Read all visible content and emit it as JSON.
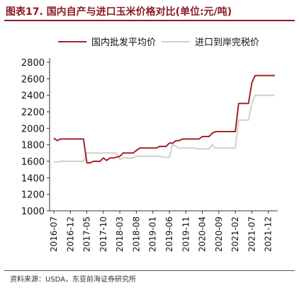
{
  "header": {
    "title": "图表17. 国内自产与进口玉米价格对比(单位:元/吨)"
  },
  "footer": {
    "source": "资料来源：USDA，东亚前海证券研究所"
  },
  "chart_data": {
    "type": "line",
    "title": "图表17. 国内自产与进口玉米价格对比(单位:元/吨)",
    "xlabel": "",
    "ylabel": "",
    "ylim": [
      1000,
      2800
    ],
    "yticks": [
      1000,
      1200,
      1400,
      1600,
      1800,
      2000,
      2200,
      2400,
      2600,
      2800
    ],
    "xticks": [
      "2016-07",
      "2016-12",
      "2017-05",
      "2017-10",
      "2018-03",
      "2018-08",
      "2019-01",
      "2019-06",
      "2019-11",
      "2020-04",
      "2020-09",
      "2021-02",
      "2021-07",
      "2021-12"
    ],
    "x_start": "2016-07",
    "x_end": "2022-02",
    "grid": false,
    "legend": "top",
    "series": [
      {
        "name": "国内批发平均价",
        "color": "#a8222c",
        "points": [
          [
            "2016-07",
            1880
          ],
          [
            "2016-08",
            1850
          ],
          [
            "2016-09",
            1870
          ],
          [
            "2016-10",
            1870
          ],
          [
            "2016-11",
            1870
          ],
          [
            "2016-12",
            1870
          ],
          [
            "2017-01",
            1870
          ],
          [
            "2017-02",
            1870
          ],
          [
            "2017-03",
            1870
          ],
          [
            "2017-04",
            1870
          ],
          [
            "2017-05",
            1580
          ],
          [
            "2017-06",
            1580
          ],
          [
            "2017-07",
            1600
          ],
          [
            "2017-08",
            1600
          ],
          [
            "2017-09",
            1600
          ],
          [
            "2017-10",
            1640
          ],
          [
            "2017-11",
            1610
          ],
          [
            "2017-12",
            1640
          ],
          [
            "2018-01",
            1640
          ],
          [
            "2018-02",
            1650
          ],
          [
            "2018-03",
            1660
          ],
          [
            "2018-04",
            1700
          ],
          [
            "2018-05",
            1700
          ],
          [
            "2018-06",
            1700
          ],
          [
            "2018-07",
            1700
          ],
          [
            "2018-08",
            1730
          ],
          [
            "2018-09",
            1760
          ],
          [
            "2018-10",
            1760
          ],
          [
            "2018-11",
            1760
          ],
          [
            "2018-12",
            1760
          ],
          [
            "2019-01",
            1760
          ],
          [
            "2019-02",
            1760
          ],
          [
            "2019-03",
            1780
          ],
          [
            "2019-04",
            1780
          ],
          [
            "2019-05",
            1780
          ],
          [
            "2019-06",
            1820
          ],
          [
            "2019-07",
            1820
          ],
          [
            "2019-08",
            1850
          ],
          [
            "2019-09",
            1850
          ],
          [
            "2019-10",
            1870
          ],
          [
            "2019-11",
            1870
          ],
          [
            "2019-12",
            1870
          ],
          [
            "2020-01",
            1870
          ],
          [
            "2020-02",
            1870
          ],
          [
            "2020-03",
            1870
          ],
          [
            "2020-04",
            1900
          ],
          [
            "2020-05",
            1900
          ],
          [
            "2020-06",
            1900
          ],
          [
            "2020-07",
            1940
          ],
          [
            "2020-08",
            1960
          ],
          [
            "2020-09",
            1960
          ],
          [
            "2020-10",
            1960
          ],
          [
            "2020-11",
            1960
          ],
          [
            "2020-12",
            1960
          ],
          [
            "2021-01",
            1960
          ],
          [
            "2021-02",
            1960
          ],
          [
            "2021-03",
            2300
          ],
          [
            "2021-04",
            2300
          ],
          [
            "2021-05",
            2300
          ],
          [
            "2021-06",
            2300
          ],
          [
            "2021-07",
            2550
          ],
          [
            "2021-08",
            2640
          ],
          [
            "2021-09",
            2640
          ],
          [
            "2021-10",
            2640
          ],
          [
            "2021-11",
            2640
          ],
          [
            "2021-12",
            2640
          ],
          [
            "2022-01",
            2640
          ],
          [
            "2022-02",
            2640
          ]
        ]
      },
      {
        "name": "进口到岸完税价",
        "color": "#cfcfcf",
        "points": [
          [
            "2016-07",
            1590
          ],
          [
            "2016-08",
            1590
          ],
          [
            "2016-09",
            1600
          ],
          [
            "2016-10",
            1600
          ],
          [
            "2016-11",
            1600
          ],
          [
            "2016-12",
            1600
          ],
          [
            "2017-01",
            1600
          ],
          [
            "2017-02",
            1600
          ],
          [
            "2017-03",
            1600
          ],
          [
            "2017-04",
            1600
          ],
          [
            "2017-05",
            1700
          ],
          [
            "2017-06",
            1700
          ],
          [
            "2017-07",
            1700
          ],
          [
            "2017-08",
            1700
          ],
          [
            "2017-09",
            1700
          ],
          [
            "2017-10",
            1700
          ],
          [
            "2017-11",
            1700
          ],
          [
            "2017-12",
            1700
          ],
          [
            "2018-01",
            1700
          ],
          [
            "2018-02",
            1700
          ],
          [
            "2018-03",
            1620
          ],
          [
            "2018-04",
            1640
          ],
          [
            "2018-05",
            1640
          ],
          [
            "2018-06",
            1640
          ],
          [
            "2018-07",
            1640
          ],
          [
            "2018-08",
            1660
          ],
          [
            "2018-09",
            1660
          ],
          [
            "2018-10",
            1660
          ],
          [
            "2018-11",
            1660
          ],
          [
            "2018-12",
            1660
          ],
          [
            "2019-01",
            1660
          ],
          [
            "2019-02",
            1660
          ],
          [
            "2019-03",
            1660
          ],
          [
            "2019-04",
            1650
          ],
          [
            "2019-05",
            1650
          ],
          [
            "2019-06",
            1650
          ],
          [
            "2019-07",
            1810
          ],
          [
            "2019-08",
            1780
          ],
          [
            "2019-09",
            1760
          ],
          [
            "2019-10",
            1760
          ],
          [
            "2019-11",
            1760
          ],
          [
            "2019-12",
            1760
          ],
          [
            "2020-01",
            1760
          ],
          [
            "2020-02",
            1760
          ],
          [
            "2020-03",
            1750
          ],
          [
            "2020-04",
            1750
          ],
          [
            "2020-05",
            1750
          ],
          [
            "2020-06",
            1750
          ],
          [
            "2020-07",
            1800
          ],
          [
            "2020-08",
            1760
          ],
          [
            "2020-09",
            1760
          ],
          [
            "2020-10",
            1760
          ],
          [
            "2020-11",
            1760
          ],
          [
            "2020-12",
            1760
          ],
          [
            "2021-01",
            1760
          ],
          [
            "2021-02",
            1760
          ],
          [
            "2021-03",
            2100
          ],
          [
            "2021-04",
            2100
          ],
          [
            "2021-05",
            2100
          ],
          [
            "2021-06",
            2100
          ],
          [
            "2021-07",
            2300
          ],
          [
            "2021-08",
            2400
          ],
          [
            "2021-09",
            2400
          ],
          [
            "2021-10",
            2400
          ],
          [
            "2021-11",
            2400
          ],
          [
            "2021-12",
            2400
          ],
          [
            "2022-01",
            2400
          ],
          [
            "2022-02",
            2400
          ]
        ]
      }
    ]
  }
}
